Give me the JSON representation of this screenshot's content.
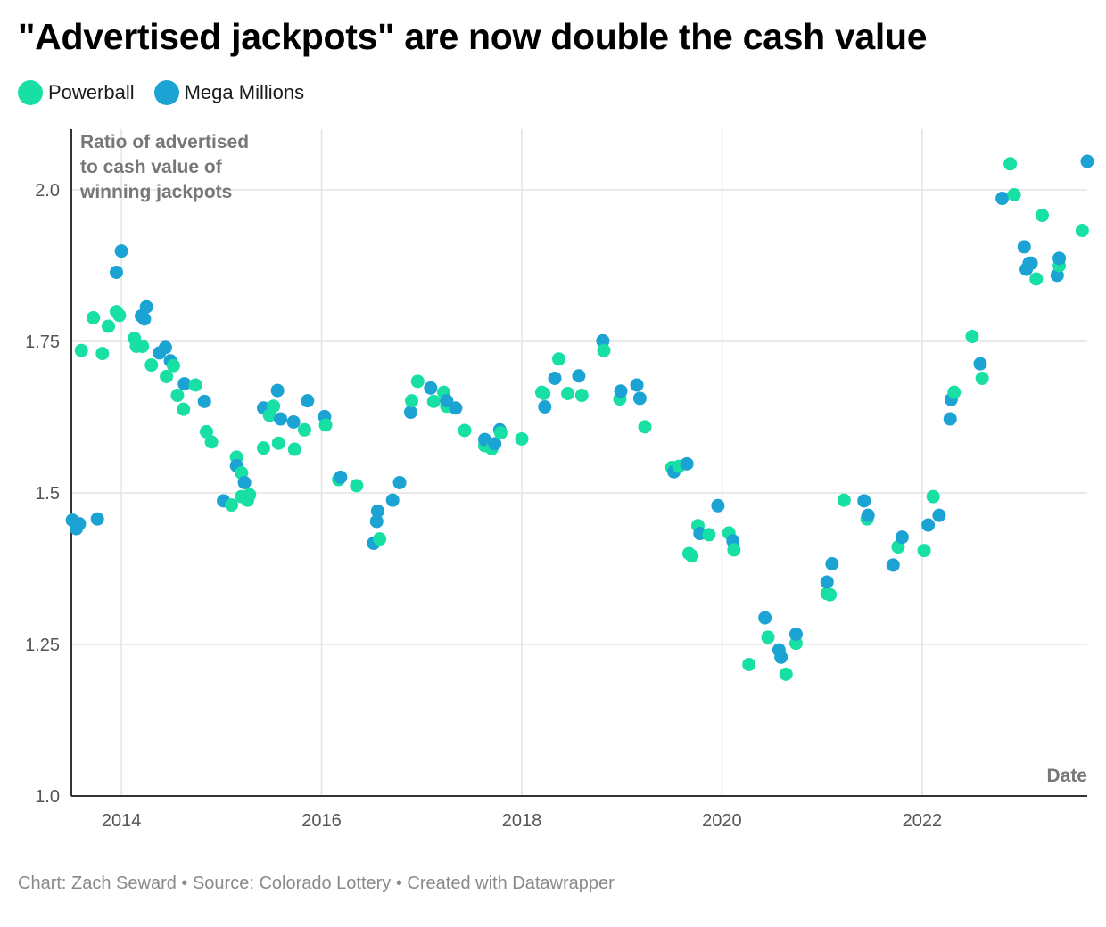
{
  "title": "\"Advertised jackpots\" are now double the cash value",
  "colors": {
    "powerball": "#18e0a4",
    "mega_millions": "#1ba3d4",
    "grid": "#e3e3e3",
    "axis": "#333333",
    "tick_text": "#555555",
    "annotation_text": "#777777",
    "footer_text": "#8a8a8a"
  },
  "legend": [
    {
      "label": "Powerball",
      "color": "#18e0a4"
    },
    {
      "label": "Mega Millions",
      "color": "#1ba3d4"
    }
  ],
  "footer": "Chart: Zach Seward • Source: Colorado Lottery • Created with Datawrapper",
  "chart_data": {
    "type": "scatter",
    "xlabel": "Date",
    "ylabel_lines": [
      "Ratio of advertised",
      "to cash value of",
      "winning jackpots"
    ],
    "xlim": [
      2013.5,
      2023.65
    ],
    "ylim": [
      1.0,
      2.1
    ],
    "x_ticks": [
      2014,
      2016,
      2018,
      2020,
      2022
    ],
    "y_ticks": [
      1.0,
      1.25,
      1.5,
      1.75,
      2.0
    ],
    "y_tick_labels": [
      "1.0",
      "1.25",
      "1.5",
      "1.75",
      "2.0"
    ],
    "grid": true,
    "legend_position": "top-left",
    "series": [
      {
        "name": "Powerball",
        "color": "#18e0a4",
        "points": [
          [
            2013.6,
            1.735
          ],
          [
            2013.72,
            1.789
          ],
          [
            2013.81,
            1.73
          ],
          [
            2013.87,
            1.775
          ],
          [
            2013.95,
            1.799
          ],
          [
            2013.98,
            1.793
          ],
          [
            2014.13,
            1.755
          ],
          [
            2014.15,
            1.742
          ],
          [
            2014.21,
            1.742
          ],
          [
            2014.3,
            1.711
          ],
          [
            2014.45,
            1.692
          ],
          [
            2014.52,
            1.71
          ],
          [
            2014.56,
            1.661
          ],
          [
            2014.62,
            1.638
          ],
          [
            2014.74,
            1.678
          ],
          [
            2014.85,
            1.601
          ],
          [
            2014.9,
            1.584
          ],
          [
            2015.1,
            1.48
          ],
          [
            2015.15,
            1.559
          ],
          [
            2015.2,
            1.533
          ],
          [
            2015.2,
            1.494
          ],
          [
            2015.26,
            1.488
          ],
          [
            2015.28,
            1.497
          ],
          [
            2015.42,
            1.574
          ],
          [
            2015.48,
            1.628
          ],
          [
            2015.52,
            1.643
          ],
          [
            2015.57,
            1.582
          ],
          [
            2015.73,
            1.572
          ],
          [
            2015.83,
            1.604
          ],
          [
            2016.04,
            1.612
          ],
          [
            2016.17,
            1.522
          ],
          [
            2016.35,
            1.512
          ],
          [
            2016.58,
            1.424
          ],
          [
            2016.9,
            1.652
          ],
          [
            2016.96,
            1.684
          ],
          [
            2017.12,
            1.651
          ],
          [
            2017.22,
            1.666
          ],
          [
            2017.25,
            1.643
          ],
          [
            2017.43,
            1.603
          ],
          [
            2017.63,
            1.578
          ],
          [
            2017.7,
            1.573
          ],
          [
            2017.79,
            1.599
          ],
          [
            2018.0,
            1.589
          ],
          [
            2018.2,
            1.666
          ],
          [
            2018.22,
            1.664
          ],
          [
            2018.37,
            1.721
          ],
          [
            2018.46,
            1.664
          ],
          [
            2018.6,
            1.661
          ],
          [
            2018.82,
            1.735
          ],
          [
            2018.98,
            1.655
          ],
          [
            2019.23,
            1.609
          ],
          [
            2019.5,
            1.542
          ],
          [
            2019.57,
            1.544
          ],
          [
            2019.67,
            1.4
          ],
          [
            2019.7,
            1.396
          ],
          [
            2019.76,
            1.446
          ],
          [
            2019.87,
            1.431
          ],
          [
            2020.07,
            1.434
          ],
          [
            2020.12,
            1.406
          ],
          [
            2020.27,
            1.217
          ],
          [
            2020.46,
            1.262
          ],
          [
            2020.64,
            1.201
          ],
          [
            2020.74,
            1.252
          ],
          [
            2021.05,
            1.334
          ],
          [
            2021.08,
            1.332
          ],
          [
            2021.22,
            1.488
          ],
          [
            2021.45,
            1.457
          ],
          [
            2021.76,
            1.411
          ],
          [
            2022.02,
            1.405
          ],
          [
            2022.11,
            1.494
          ],
          [
            2022.32,
            1.666
          ],
          [
            2022.5,
            1.758
          ],
          [
            2022.6,
            1.689
          ],
          [
            2022.88,
            2.043
          ],
          [
            2022.92,
            1.992
          ],
          [
            2023.14,
            1.853
          ],
          [
            2023.2,
            1.958
          ],
          [
            2023.37,
            1.875
          ],
          [
            2023.6,
            1.933
          ]
        ]
      },
      {
        "name": "Mega Millions",
        "color": "#1ba3d4",
        "points": [
          [
            2013.51,
            1.455
          ],
          [
            2013.55,
            1.441
          ],
          [
            2013.58,
            1.449
          ],
          [
            2013.76,
            1.457
          ],
          [
            2013.95,
            1.864
          ],
          [
            2014.0,
            1.899
          ],
          [
            2014.2,
            1.792
          ],
          [
            2014.23,
            1.787
          ],
          [
            2014.25,
            1.807
          ],
          [
            2014.38,
            1.731
          ],
          [
            2014.44,
            1.74
          ],
          [
            2014.49,
            1.718
          ],
          [
            2014.63,
            1.68
          ],
          [
            2014.83,
            1.651
          ],
          [
            2015.02,
            1.487
          ],
          [
            2015.15,
            1.545
          ],
          [
            2015.23,
            1.517
          ],
          [
            2015.42,
            1.64
          ],
          [
            2015.56,
            1.669
          ],
          [
            2015.59,
            1.622
          ],
          [
            2015.72,
            1.617
          ],
          [
            2015.86,
            1.652
          ],
          [
            2016.03,
            1.626
          ],
          [
            2016.19,
            1.526
          ],
          [
            2016.52,
            1.417
          ],
          [
            2016.55,
            1.453
          ],
          [
            2016.56,
            1.47
          ],
          [
            2016.71,
            1.488
          ],
          [
            2016.78,
            1.517
          ],
          [
            2016.89,
            1.633
          ],
          [
            2017.09,
            1.673
          ],
          [
            2017.25,
            1.652
          ],
          [
            2017.34,
            1.64
          ],
          [
            2017.63,
            1.588
          ],
          [
            2017.73,
            1.581
          ],
          [
            2017.78,
            1.604
          ],
          [
            2018.23,
            1.642
          ],
          [
            2018.33,
            1.689
          ],
          [
            2018.57,
            1.693
          ],
          [
            2018.81,
            1.751
          ],
          [
            2018.99,
            1.668
          ],
          [
            2019.15,
            1.678
          ],
          [
            2019.18,
            1.656
          ],
          [
            2019.52,
            1.535
          ],
          [
            2019.65,
            1.548
          ],
          [
            2019.78,
            1.433
          ],
          [
            2019.96,
            1.479
          ],
          [
            2020.11,
            1.421
          ],
          [
            2020.43,
            1.294
          ],
          [
            2020.57,
            1.241
          ],
          [
            2020.59,
            1.229
          ],
          [
            2020.74,
            1.267
          ],
          [
            2021.05,
            1.353
          ],
          [
            2021.1,
            1.383
          ],
          [
            2021.42,
            1.487
          ],
          [
            2021.46,
            1.463
          ],
          [
            2021.71,
            1.381
          ],
          [
            2021.8,
            1.427
          ],
          [
            2022.06,
            1.447
          ],
          [
            2022.17,
            1.463
          ],
          [
            2022.28,
            1.622
          ],
          [
            2022.29,
            1.654
          ],
          [
            2022.58,
            1.713
          ],
          [
            2022.8,
            1.986
          ],
          [
            2023.02,
            1.906
          ],
          [
            2023.04,
            1.869
          ],
          [
            2023.07,
            1.879
          ],
          [
            2023.09,
            1.879
          ],
          [
            2023.35,
            1.859
          ],
          [
            2023.37,
            1.887
          ],
          [
            2023.65,
            2.047
          ]
        ]
      }
    ]
  }
}
